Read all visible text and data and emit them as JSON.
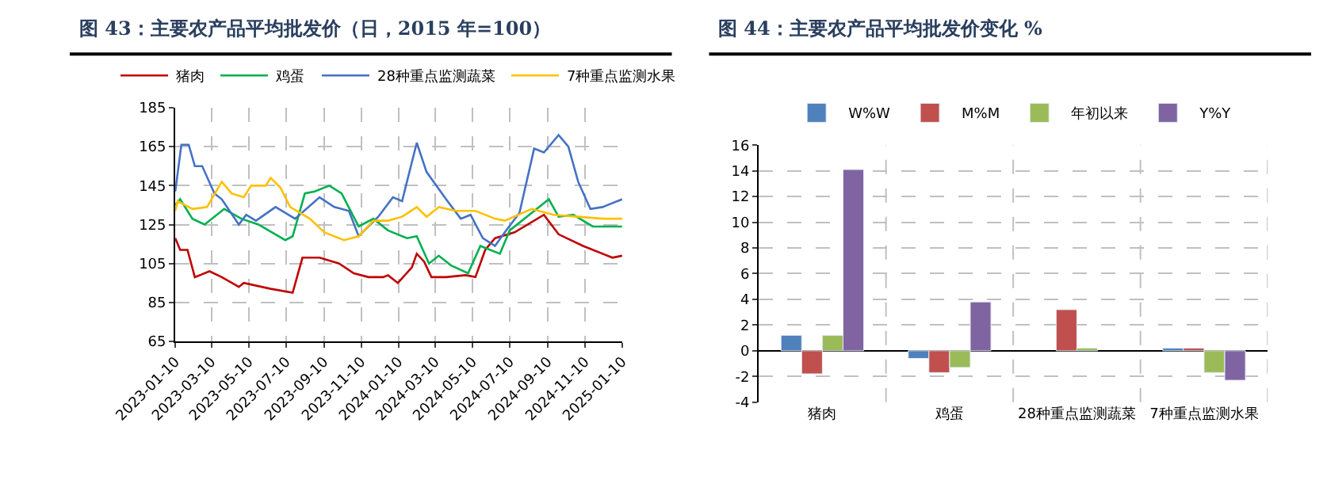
{
  "chart_data": [
    {
      "type": "line",
      "title": "图 43：主要农产品平均批发价（日，2015 年=100）",
      "legend": "top",
      "grid": true,
      "line_style": "solid",
      "marker": "none",
      "xlim": [
        "2023-01-10",
        "2025-01-10"
      ],
      "xticks": [
        "2023-01-10",
        "2023-03-10",
        "2023-05-10",
        "2023-07-10",
        "2023-09-10",
        "2023-11-10",
        "2024-01-10",
        "2024-03-10",
        "2024-05-10",
        "2024-07-10",
        "2024-09-10",
        "2024-11-10",
        "2025-01-10"
      ],
      "ylim": [
        65,
        185
      ],
      "yticks": [
        65,
        85,
        105,
        125,
        145,
        165,
        185
      ],
      "series": [
        {
          "name": "猪肉",
          "color": "#c00000",
          "x": [
            "2023-01-10",
            "2023-01-18",
            "2023-01-30",
            "2023-02-11",
            "2023-03-07",
            "2023-03-27",
            "2023-04-24",
            "2023-05-02",
            "2023-06-15",
            "2023-07-21",
            "2023-08-06",
            "2023-09-03",
            "2023-10-05",
            "2023-10-29",
            "2023-11-22",
            "2023-12-16",
            "2023-12-24",
            "2024-01-09",
            "2024-02-01",
            "2024-02-09",
            "2024-02-21",
            "2024-03-04",
            "2024-03-28",
            "2024-04-29",
            "2024-05-15",
            "2024-05-31",
            "2024-06-16",
            "2024-07-18",
            "2024-09-04",
            "2024-09-28",
            "2024-11-07",
            "2024-12-25",
            "2025-01-10"
          ],
          "values": [
            118,
            112,
            112,
            98,
            101,
            98,
            93,
            95,
            92,
            90,
            108,
            108,
            105,
            100,
            98,
            98,
            99,
            95,
            103,
            110,
            106,
            98,
            98,
            99,
            98,
            112,
            118,
            121,
            130,
            120,
            114,
            108,
            109
          ]
        },
        {
          "name": "鸡蛋",
          "color": "#00b050",
          "x": [
            "2023-01-10",
            "2023-01-18",
            "2023-02-07",
            "2023-02-27",
            "2023-03-31",
            "2023-04-28",
            "2023-05-26",
            "2023-07-09",
            "2023-07-21",
            "2023-08-10",
            "2023-08-26",
            "2023-09-19",
            "2023-10-09",
            "2023-11-06",
            "2023-11-30",
            "2023-12-24",
            "2024-01-24",
            "2024-02-09",
            "2024-02-29",
            "2024-03-16",
            "2024-04-05",
            "2024-05-03",
            "2024-05-23",
            "2024-06-24",
            "2024-07-10",
            "2024-08-11",
            "2024-09-12",
            "2024-09-28",
            "2024-10-22",
            "2024-11-23",
            "2025-01-10"
          ],
          "values": [
            135,
            138,
            128,
            125,
            133,
            128,
            125,
            117,
            119,
            141,
            142,
            145,
            141,
            124,
            128,
            122,
            118,
            119,
            105,
            109,
            104,
            100,
            114,
            110,
            122,
            130,
            138,
            129,
            130,
            124,
            124
          ]
        },
        {
          "name": "28种重点监测蔬菜",
          "color": "#4472c4",
          "x": [
            "2023-01-10",
            "2023-01-20",
            "2023-02-01",
            "2023-02-11",
            "2023-02-23",
            "2023-03-15",
            "2023-03-27",
            "2023-04-24",
            "2023-05-06",
            "2023-05-22",
            "2023-06-23",
            "2023-07-25",
            "2023-09-03",
            "2023-09-27",
            "2023-10-21",
            "2023-11-06",
            "2023-12-08",
            "2024-01-01",
            "2024-01-16",
            "2024-02-09",
            "2024-02-25",
            "2024-03-28",
            "2024-04-21",
            "2024-05-07",
            "2024-05-27",
            "2024-06-16",
            "2024-07-02",
            "2024-07-26",
            "2024-08-19",
            "2024-09-04",
            "2024-09-28",
            "2024-10-14",
            "2024-10-30",
            "2024-11-19",
            "2024-12-09",
            "2025-01-10"
          ],
          "values": [
            142,
            166,
            166,
            155,
            155,
            141,
            138,
            125,
            130,
            127,
            134,
            128,
            139,
            134,
            132,
            119,
            129,
            139,
            137,
            167,
            152,
            138,
            128,
            130,
            118,
            114,
            121,
            131,
            164,
            162,
            171,
            165,
            147,
            133,
            134,
            138
          ]
        },
        {
          "name": "7种重点监测水果",
          "color": "#ffc000",
          "x": [
            "2023-01-10",
            "2023-01-14",
            "2023-02-07",
            "2023-03-03",
            "2023-03-27",
            "2023-04-12",
            "2023-05-02",
            "2023-05-14",
            "2023-06-07",
            "2023-06-15",
            "2023-07-01",
            "2023-07-17",
            "2023-08-18",
            "2023-09-11",
            "2023-10-13",
            "2023-11-06",
            "2023-11-30",
            "2023-12-24",
            "2024-01-16",
            "2024-02-09",
            "2024-02-25",
            "2024-03-16",
            "2024-04-13",
            "2024-05-15",
            "2024-06-16",
            "2024-07-02",
            "2024-08-15",
            "2024-09-20",
            "2024-10-30",
            "2024-12-09",
            "2025-01-10"
          ],
          "values": [
            132,
            137,
            133,
            134,
            147,
            141,
            139,
            145,
            145,
            149,
            144,
            134,
            128,
            121,
            117,
            119,
            127,
            127,
            129,
            134,
            129,
            134,
            132,
            132,
            128,
            127,
            133,
            130,
            129,
            128,
            128
          ]
        }
      ]
    },
    {
      "type": "bar",
      "title": "图 44：主要农产品平均批发价变化 %",
      "legend": "top",
      "grid": true,
      "categories": [
        "猪肉",
        "鸡蛋",
        "28种重点监测蔬菜",
        "7种重点监测水果"
      ],
      "ylim": [
        -4,
        16
      ],
      "yticks": [
        -4,
        -2,
        0,
        2,
        4,
        6,
        8,
        10,
        12,
        14,
        16
      ],
      "series": [
        {
          "name": "W%W",
          "color": "#4f81bd",
          "values": [
            1.2,
            -0.6,
            null,
            0.2
          ]
        },
        {
          "name": "M%M",
          "color": "#c0504d",
          "values": [
            -1.8,
            -1.7,
            3.2,
            0.2
          ]
        },
        {
          "name": "年初以来",
          "color": "#9bbb59",
          "values": [
            1.2,
            -1.3,
            0.2,
            -1.7
          ]
        },
        {
          "name": "Y%Y",
          "color": "#8064a2",
          "values": [
            14.1,
            3.8,
            null,
            -2.3
          ]
        }
      ]
    }
  ]
}
